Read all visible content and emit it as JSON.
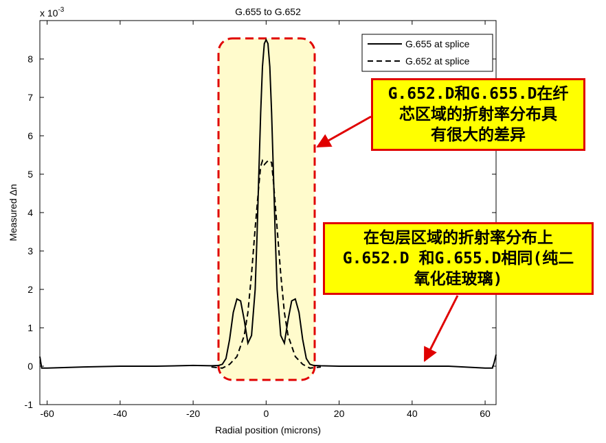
{
  "chart_data": {
    "type": "line",
    "title": "G.655 to G.652",
    "xlabel": "Radial position (microns)",
    "ylabel": "Measured Δn",
    "y_multiplier": "x 10^-3",
    "y_multiplier_base": "x 10",
    "y_multiplier_exp": "-3",
    "xlim": [
      -62,
      63
    ],
    "ylim": [
      -1,
      9
    ],
    "xticks": [
      -60,
      -40,
      -20,
      0,
      20,
      40,
      60
    ],
    "yticks": [
      -1,
      0,
      1,
      2,
      3,
      4,
      5,
      6,
      7,
      8
    ],
    "grid": false,
    "legend_position": "top-right",
    "series": [
      {
        "name": "G.655 at splice",
        "style": "solid",
        "color": "#000000",
        "x": [
          -62,
          -61.5,
          -60,
          -50,
          -40,
          -30,
          -20,
          -15,
          -13,
          -12,
          -11,
          -10,
          -9,
          -8,
          -7,
          -6,
          -5,
          -4,
          -3,
          -2.5,
          -2,
          -1.5,
          -1,
          -0.5,
          0,
          0.5,
          1,
          1.5,
          2,
          2.5,
          3,
          4,
          5,
          6,
          7,
          8,
          9,
          10,
          11,
          12,
          13,
          15,
          20,
          30,
          40,
          50,
          60,
          62,
          62.5,
          63
        ],
        "y": [
          0.25,
          -0.05,
          -0.05,
          -0.02,
          0.0,
          0.0,
          0.02,
          0.01,
          0.02,
          0.05,
          0.2,
          0.7,
          1.4,
          1.75,
          1.7,
          1.2,
          0.6,
          0.8,
          2.0,
          3.4,
          5.0,
          6.6,
          7.8,
          8.4,
          8.5,
          8.4,
          7.8,
          6.6,
          5.0,
          3.4,
          2.0,
          0.8,
          0.6,
          1.2,
          1.7,
          1.75,
          1.4,
          0.7,
          0.2,
          0.05,
          0.02,
          0.01,
          0.0,
          0.0,
          0.0,
          0.0,
          -0.05,
          -0.05,
          0.1,
          0.3
        ]
      },
      {
        "name": "G.652 at splice",
        "style": "dashed",
        "color": "#000000",
        "x": [
          -15,
          -12,
          -10,
          -8,
          -6,
          -5,
          -4,
          -3,
          -2,
          -1.5,
          -1,
          -0.5,
          0,
          0.5,
          1,
          1.5,
          2,
          3,
          4,
          5,
          6,
          8,
          10,
          12,
          15
        ],
        "y": [
          -0.02,
          -0.05,
          0.05,
          0.25,
          0.8,
          1.4,
          2.4,
          3.6,
          4.7,
          5.2,
          5.35,
          5.25,
          5.3,
          5.35,
          5.35,
          5.3,
          4.8,
          3.6,
          2.4,
          1.4,
          0.8,
          0.25,
          0.05,
          -0.05,
          -0.02
        ]
      }
    ]
  },
  "annotations": {
    "core_callout_lines": [
      "G.652.D和G.655.D在纤",
      "芯区域的折射率分布具",
      "有很大的差异"
    ],
    "cladding_callout_lines": [
      "在包层区域的折射率分布上",
      "G.652.D 和G.655.D相同(纯二",
      "氧化硅玻璃)"
    ],
    "highlight_fill": "#fffbcc",
    "highlight_border": "#e00000",
    "arrow_color": "#e00000"
  }
}
